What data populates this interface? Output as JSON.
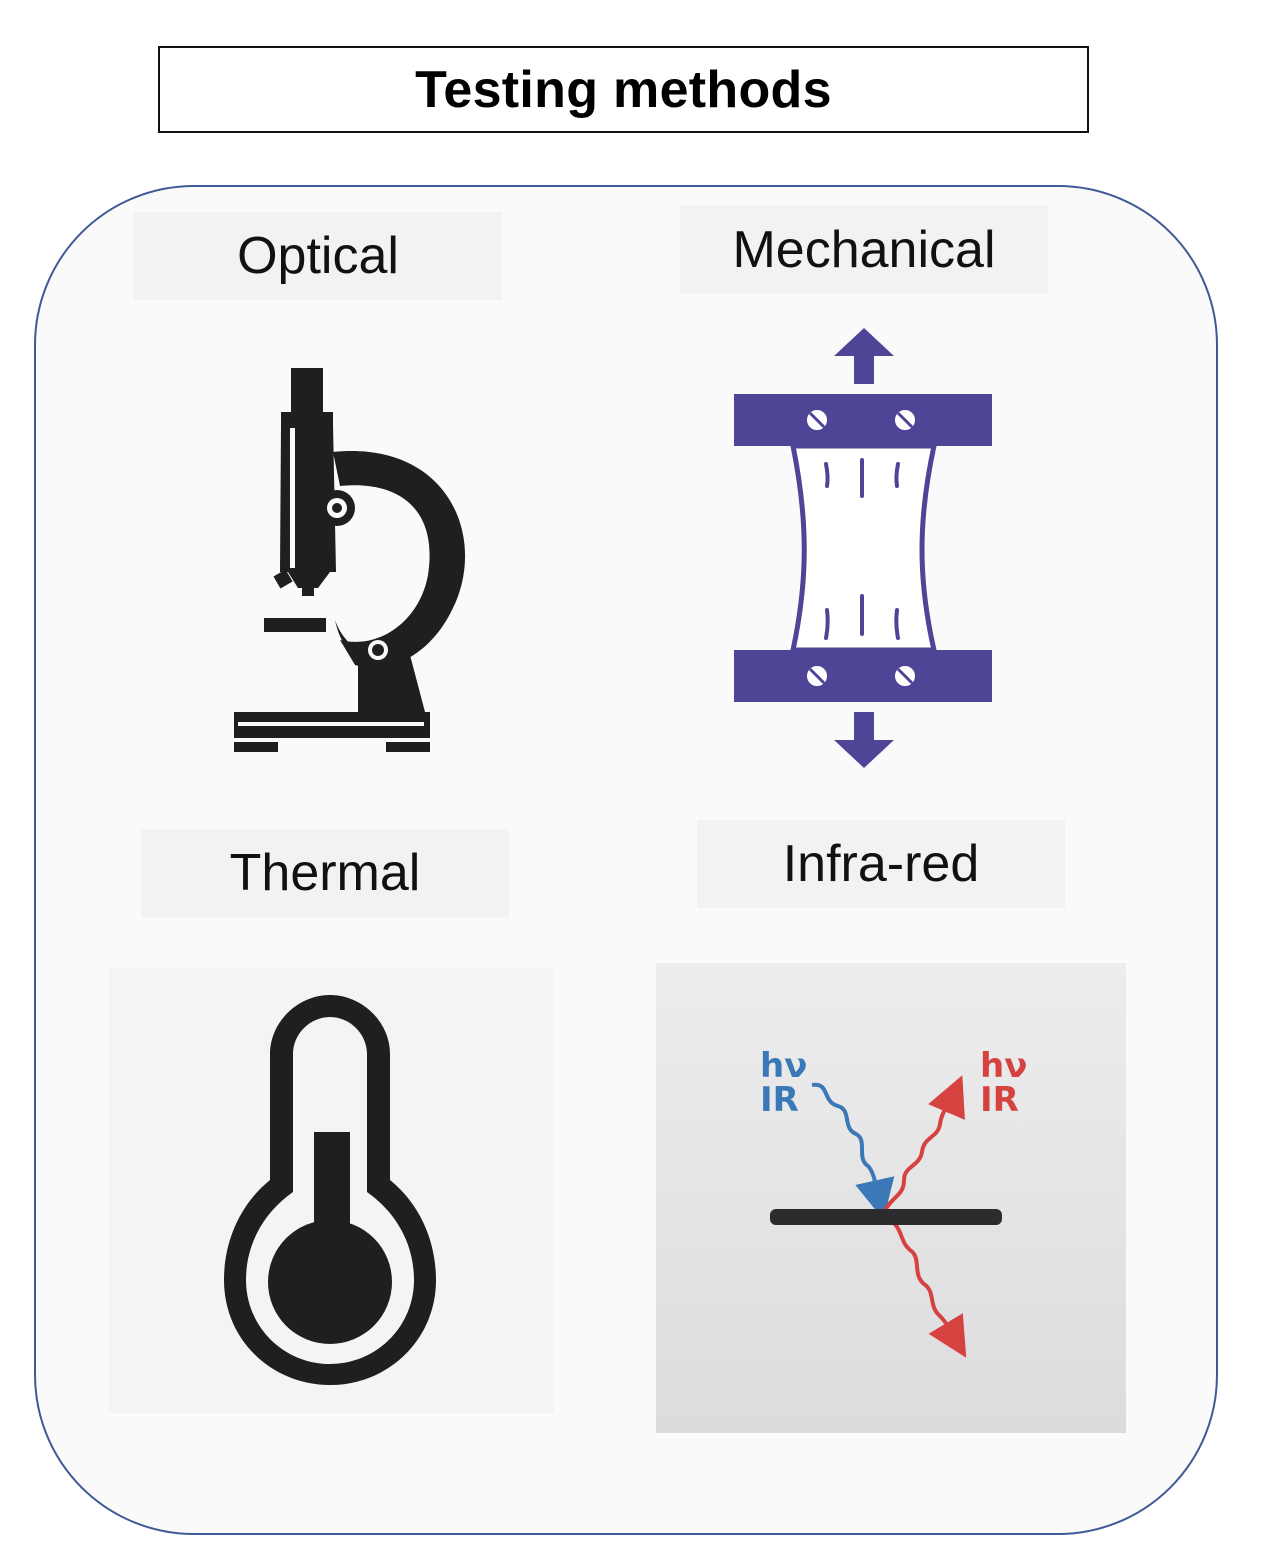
{
  "title": "Testing methods",
  "methods": [
    {
      "label": "Optical",
      "icon": "microscope-icon"
    },
    {
      "label": "Mechanical",
      "icon": "tensile-test-icon"
    },
    {
      "label": "Thermal",
      "icon": "thermometer-icon"
    },
    {
      "label": "Infra-red",
      "icon": "infrared-reflection-icon"
    }
  ],
  "infrared": {
    "incident": {
      "line1": "hν",
      "line2": "IR"
    },
    "reflected": {
      "line1": "hν",
      "line2": "IR"
    }
  },
  "colors": {
    "panel_border": "#3f5a95",
    "mechanical": "#4e4597",
    "icon_dark": "#1f1f1f",
    "ir_incident": "#3b78b8",
    "ir_reflected": "#d5423f"
  }
}
